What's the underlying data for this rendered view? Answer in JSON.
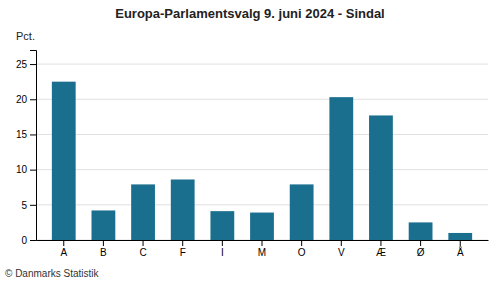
{
  "chart_data": {
    "type": "bar",
    "title": "Europa-Parlamentsvalg 9. juni 2024 - Sindal",
    "categories": [
      "A",
      "B",
      "C",
      "F",
      "I",
      "M",
      "O",
      "V",
      "Æ",
      "Ø",
      "Å"
    ],
    "values": [
      22.5,
      4.2,
      7.9,
      8.6,
      4.1,
      3.9,
      7.9,
      20.3,
      17.7,
      2.5,
      1.0
    ],
    "color": "#1a6e8e",
    "ylabel": "Pct.",
    "footer": "© Danmarks Statistik",
    "ylim": [
      0,
      27
    ],
    "yticks": [
      0,
      5,
      10,
      15,
      20,
      25
    ],
    "grid": true
  }
}
